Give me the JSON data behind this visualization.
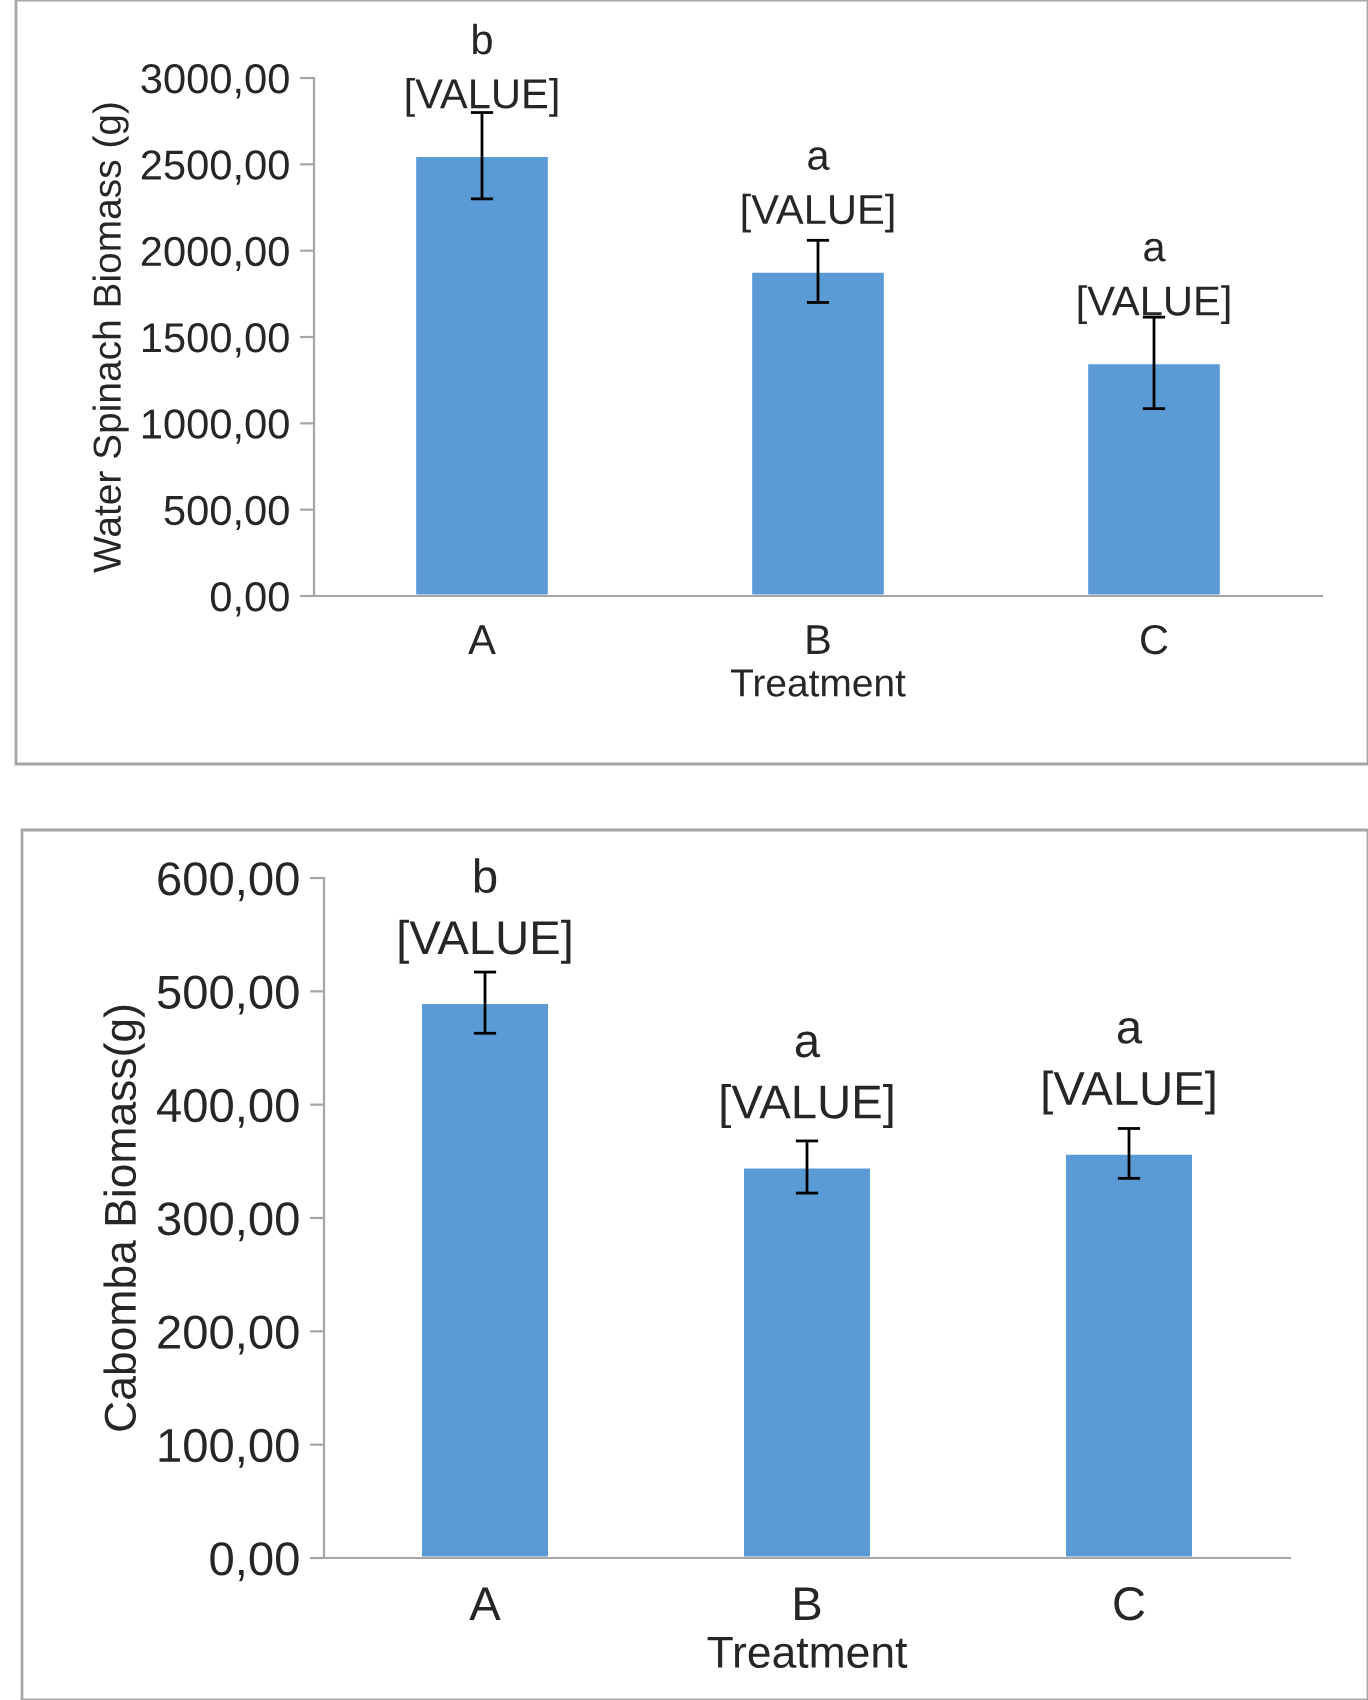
{
  "chart_data": [
    {
      "type": "bar",
      "xlabel": "Treatment",
      "ylabel": "Water Spinach Biomass (g)",
      "categories": [
        "A",
        "B",
        "C"
      ],
      "values": [
        2550,
        1880,
        1350
      ],
      "errors": [
        250,
        180,
        265
      ],
      "color": "#5b9bd5",
      "value_labels": [
        "[VALUE]",
        "[VALUE]",
        "[VALUE]"
      ],
      "annotations": [
        {
          "text": "b",
          "x": "A",
          "y": 2550
        },
        {
          "text": "a",
          "x": "B",
          "y": 1880
        },
        {
          "text": "a",
          "x": "C",
          "y": 1350
        }
      ],
      "ylim": [
        0,
        3000
      ],
      "yticks": [
        {
          "value": 0,
          "label": "0,00"
        },
        {
          "value": 500,
          "label": "500,00"
        },
        {
          "value": 1000,
          "label": "1000,00"
        },
        {
          "value": 1500,
          "label": "1500,00"
        },
        {
          "value": 2000,
          "label": "2000,00"
        },
        {
          "value": 2500,
          "label": "2500,00"
        },
        {
          "value": 3000,
          "label": "3000,00"
        }
      ],
      "grid": false,
      "legend": false
    },
    {
      "type": "bar",
      "xlabel": "Treatment",
      "ylabel": "Cabomba Biomass(g)",
      "categories": [
        "A",
        "B",
        "C"
      ],
      "values": [
        490,
        345,
        357
      ],
      "errors": [
        27,
        23,
        22
      ],
      "color": "#5b9bd5",
      "value_labels": [
        "[VALUE]",
        "[VALUE]",
        "[VALUE]"
      ],
      "annotations": [
        {
          "text": "b",
          "x": "A",
          "y": 490
        },
        {
          "text": "a",
          "x": "B",
          "y": 345
        },
        {
          "text": "a",
          "x": "C",
          "y": 357
        }
      ],
      "ylim": [
        0,
        600
      ],
      "yticks": [
        {
          "value": 0,
          "label": "0,00"
        },
        {
          "value": 100,
          "label": "100,00"
        },
        {
          "value": 200,
          "label": "200,00"
        },
        {
          "value": 300,
          "label": "300,00"
        },
        {
          "value": 400,
          "label": "400,00"
        },
        {
          "value": 500,
          "label": "500,00"
        },
        {
          "value": 600,
          "label": "600,00"
        }
      ],
      "grid": false,
      "legend": false
    }
  ]
}
